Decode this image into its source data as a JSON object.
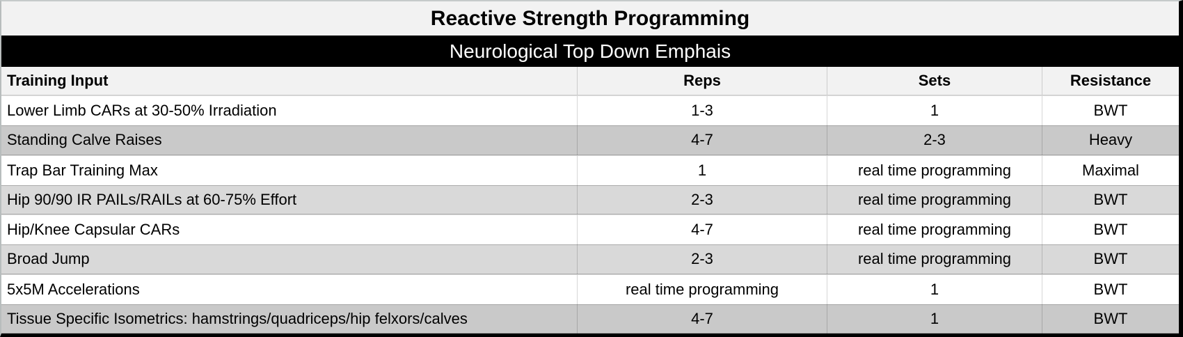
{
  "title": "Reactive Strength Programming",
  "banner": "Neurological Top Down Emphais",
  "table": {
    "columns": [
      "Training Input",
      "Reps",
      "Sets",
      "Resistance"
    ],
    "rows": [
      {
        "training_input": "Lower Limb CARs at 30-50% Irradiation",
        "reps": "1-3",
        "sets": "1",
        "resistance": "BWT",
        "shade": "white"
      },
      {
        "training_input": "Standing Calve Raises",
        "reps": "4-7",
        "sets": "2-3",
        "resistance": "Heavy",
        "shade": "dark"
      },
      {
        "training_input": "Trap Bar Training Max",
        "reps": "1",
        "sets": "real time programming",
        "resistance": "Maximal",
        "shade": "white"
      },
      {
        "training_input": "Hip 90/90 IR PAILs/RAILs at 60-75% Effort",
        "reps": "2-3",
        "sets": "real time programming",
        "resistance": "BWT",
        "shade": "light"
      },
      {
        "training_input": "Hip/Knee Capsular CARs",
        "reps": "4-7",
        "sets": "real time programming",
        "resistance": "BWT",
        "shade": "white"
      },
      {
        "training_input": "Broad Jump",
        "reps": "2-3",
        "sets": "real time programming",
        "resistance": "BWT",
        "shade": "light"
      },
      {
        "training_input": "5x5M Accelerations",
        "reps": "real time programming",
        "sets": "1",
        "resistance": "BWT",
        "shade": "white"
      },
      {
        "training_input": "Tissue Specific Isometrics: hamstrings/quadriceps/hip felxors/calves",
        "reps": "4-7",
        "sets": "1",
        "resistance": "BWT",
        "shade": "dark"
      }
    ]
  },
  "colors": {
    "banner_bg": "#000000",
    "banner_text": "#ffffff",
    "title_bg": "#f2f2f2",
    "header_bg": "#f2f2f2",
    "row_white": "#ffffff",
    "row_gray_dark": "#c9c9c9",
    "row_gray_light": "#d9d9d9",
    "outer_border": "#000000"
  }
}
